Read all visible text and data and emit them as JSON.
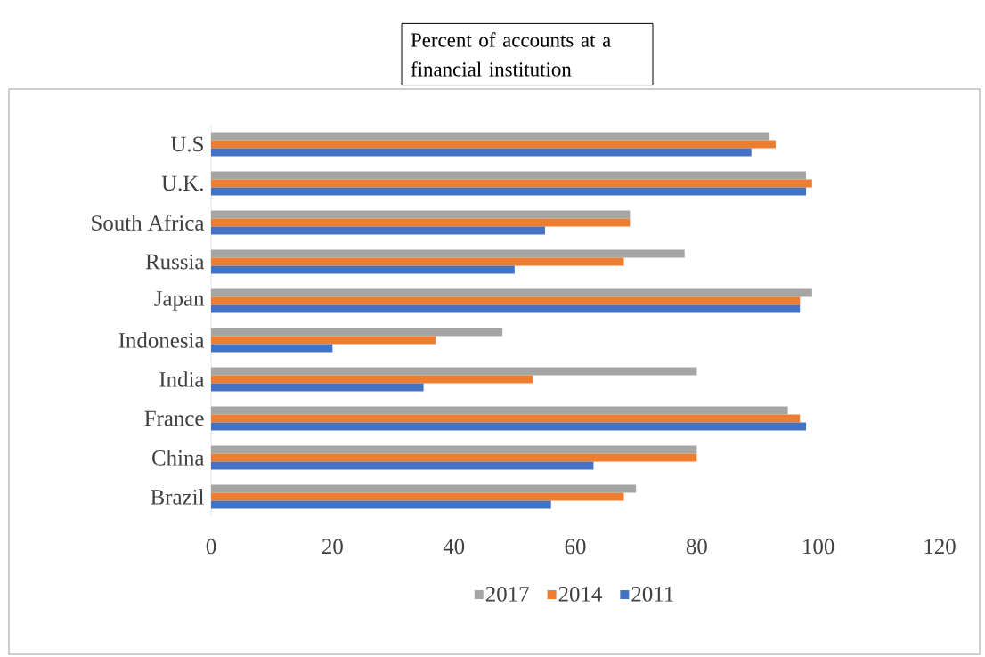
{
  "chart_data": {
    "type": "bar",
    "orientation": "horizontal",
    "title": "Percent of accounts at a financial institution",
    "categories": [
      "U.S",
      "U.K.",
      "South Africa",
      "Russia",
      "Japan",
      "Indonesia",
      "India",
      "France",
      "China",
      "Brazil"
    ],
    "series": [
      {
        "name": "2017",
        "color": "#a5a5a5",
        "values": [
          92,
          98,
          69,
          78,
          99,
          48,
          80,
          95,
          80,
          70
        ]
      },
      {
        "name": "2014",
        "color": "#ed7d31",
        "values": [
          93,
          99,
          69,
          68,
          97,
          37,
          53,
          97,
          80,
          68
        ]
      },
      {
        "name": "2011",
        "color": "#4472c4",
        "values": [
          89,
          98,
          55,
          50,
          97,
          20,
          35,
          98,
          63,
          56
        ]
      }
    ],
    "xlim": [
      0,
      120
    ],
    "xticks": [
      0,
      20,
      40,
      60,
      80,
      100,
      120
    ],
    "legend": "bottom"
  }
}
